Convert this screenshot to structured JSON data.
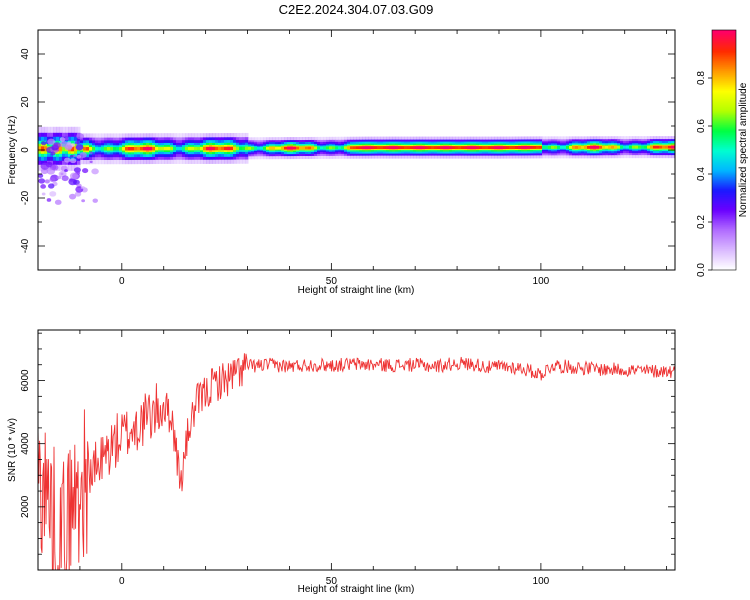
{
  "title": "C2E2.2024.304.07.03.G09",
  "colors": {
    "axis": "#000000",
    "snr_line": "#ee3333",
    "colormap": [
      "#ffffff",
      "#d9b8ff",
      "#b06bff",
      "#6a00ff",
      "#1a1aff",
      "#00b8ff",
      "#00ffd0",
      "#00ff40",
      "#b5ff00",
      "#ffff00",
      "#ff9900",
      "#ff2a00",
      "#ff0066"
    ]
  },
  "chart_data": [
    {
      "type": "heatmap",
      "xlabel": "Height of straight line (km)",
      "ylabel": "Frequency (Hz)",
      "xlim": [
        -20,
        132
      ],
      "ylim": [
        -50,
        50
      ],
      "x_ticks": [
        0,
        50,
        100
      ],
      "y_ticks": [
        -40,
        -20,
        0,
        20,
        40
      ],
      "colorbar": {
        "label": "Normalized spectral amplitude",
        "range": [
          0,
          1
        ],
        "ticks": [
          0.0,
          0.2,
          0.4,
          0.6,
          0.8
        ]
      },
      "ridge": {
        "x": [
          -20,
          -10,
          0,
          10,
          20,
          30,
          40,
          50,
          60,
          70,
          80,
          90,
          100,
          110,
          120,
          132
        ],
        "frequency_hz": [
          0.5,
          0.5,
          0.5,
          0.6,
          0.6,
          0.7,
          0.8,
          0.9,
          1.0,
          1.0,
          1.0,
          1.0,
          1.1,
          1.1,
          1.2,
          1.2
        ]
      }
    },
    {
      "type": "line",
      "xlabel": "Height of straight line (km)",
      "ylabel": "SNR (10 * v/v)",
      "xlim": [
        -20,
        132
      ],
      "ylim": [
        0,
        7600
      ],
      "x_ticks": [
        0,
        50,
        100
      ],
      "y_ticks": [
        2000,
        4000,
        6000
      ],
      "series": [
        {
          "x": [
            -20,
            -18,
            -16,
            -14,
            -12,
            -10,
            -8,
            -6,
            -4,
            -2,
            0,
            2,
            4,
            6,
            8,
            10,
            12,
            14,
            16,
            18,
            20,
            22,
            24,
            26,
            28,
            30,
            35,
            40,
            45,
            50,
            55,
            60,
            65,
            70,
            75,
            80,
            85,
            88,
            90,
            95,
            100,
            103,
            105,
            110,
            115,
            120,
            125,
            132
          ],
          "y": [
            3000,
            2500,
            1500,
            1200,
            2000,
            2500,
            3000,
            3200,
            3600,
            4000,
            4200,
            4400,
            4600,
            4800,
            5000,
            5200,
            4800,
            2700,
            4500,
            5300,
            5600,
            5900,
            6000,
            6100,
            6300,
            6450,
            6500,
            6450,
            6500,
            6480,
            6520,
            6500,
            6480,
            6500,
            6450,
            6550,
            6500,
            6400,
            6450,
            6400,
            6200,
            6500,
            6450,
            6400,
            6350,
            6350,
            6300,
            6300
          ]
        }
      ]
    }
  ]
}
